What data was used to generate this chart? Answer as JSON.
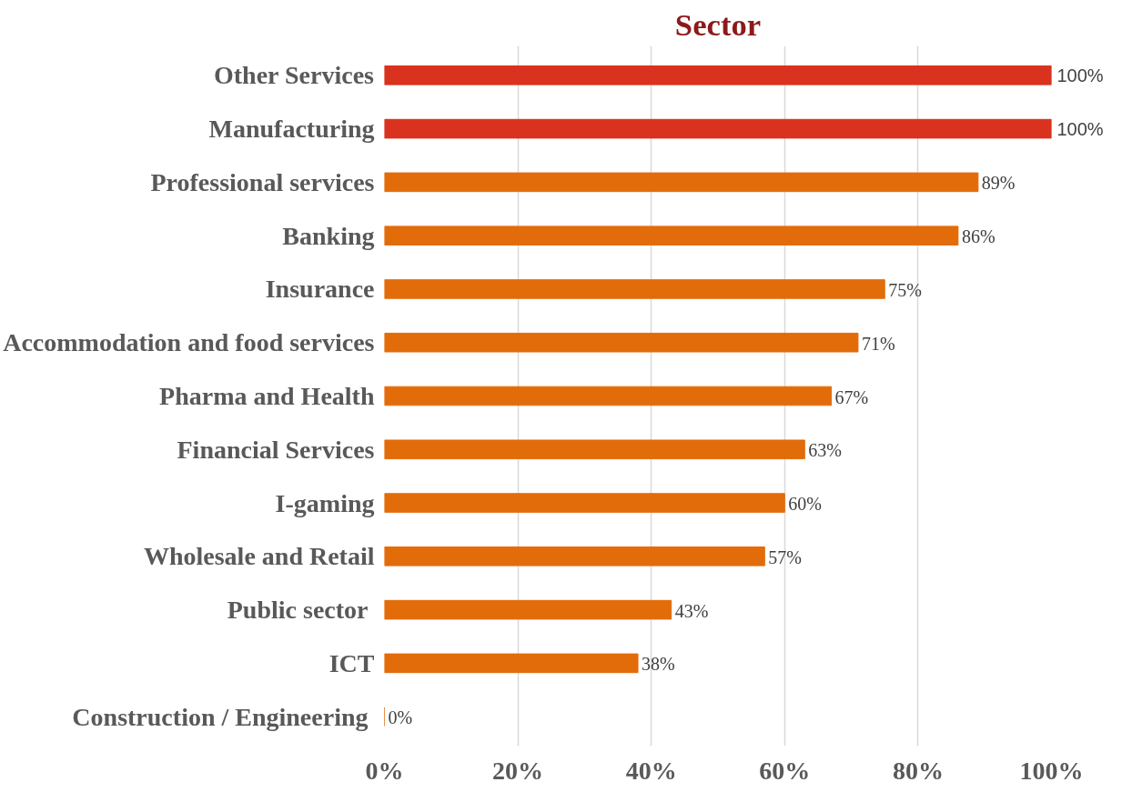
{
  "chart_data": {
    "type": "bar",
    "orientation": "horizontal",
    "title": "Sector",
    "categories": [
      "Other Services",
      "Manufacturing",
      "Professional services",
      "Banking",
      "Insurance",
      "Accommodation and food services",
      "Pharma and Health",
      "Financial Services",
      "I-gaming",
      "Wholesale and Retail",
      "Public sector ",
      "ICT",
      "Construction / Engineering "
    ],
    "values": [
      100,
      100,
      89,
      86,
      75,
      71,
      67,
      63,
      60,
      57,
      43,
      38,
      0
    ],
    "colors": [
      "#d9321f",
      "#d9321f",
      "#e36c0a",
      "#e36c0a",
      "#e36c0a",
      "#e36c0a",
      "#e36c0a",
      "#e36c0a",
      "#e36c0a",
      "#e36c0a",
      "#e36c0a",
      "#e36c0a",
      "#e36c0a"
    ],
    "value_labels": [
      "100%",
      "100%",
      "89%",
      "86%",
      "75%",
      "71%",
      "67%",
      "63%",
      "60%",
      "57%",
      "43%",
      "38%",
      "0%"
    ],
    "xlim": [
      0,
      100
    ],
    "xticks": [
      {
        "value": 0,
        "label": "0%"
      },
      {
        "value": 20,
        "label": "20%"
      },
      {
        "value": 40,
        "label": "40%"
      },
      {
        "value": 60,
        "label": "60%"
      },
      {
        "value": 80,
        "label": "80%"
      },
      {
        "value": 100,
        "label": "100%"
      }
    ],
    "grid": "x"
  }
}
